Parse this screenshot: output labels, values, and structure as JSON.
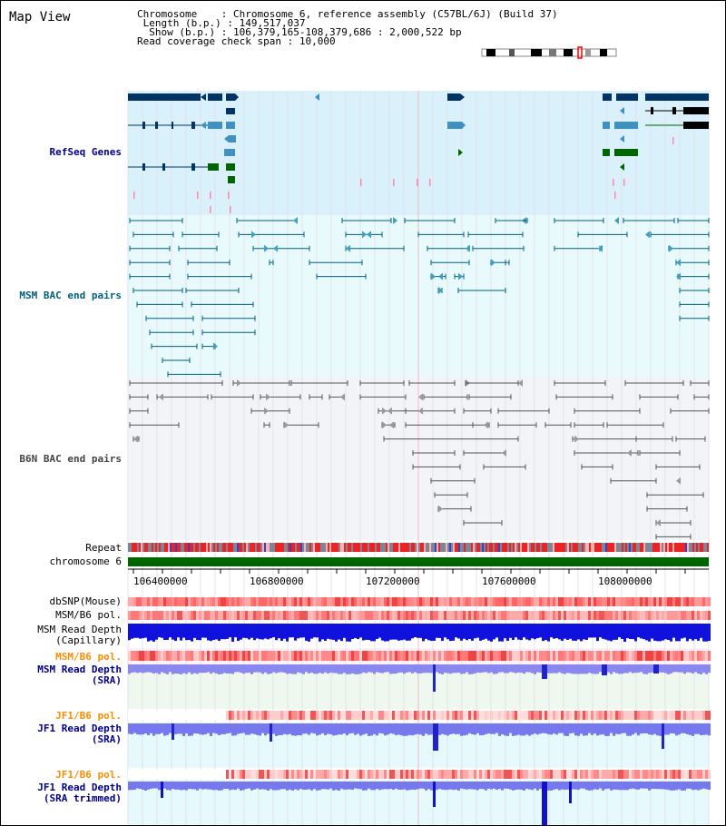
{
  "map_title": "Map View",
  "info": {
    "chromosome_label": "Chromosome",
    "chromosome_value": "Chromosome 6, reference assembly (C57BL/6J) (Build 37)",
    "length_label": "Length (b.p.)",
    "length_value": "149,517,037",
    "show_label": "Show (b.p.)",
    "show_value": "106,379,165-108,379,686 : 2,000,522 bp",
    "coverage_label": "Read coverage check span",
    "coverage_value": "10,000"
  },
  "tracks": {
    "refseq": "RefSeq Genes",
    "msm_bac": "MSM BAC end pairs",
    "b6n_bac": "B6N BAC end pairs",
    "repeat": "Repeat",
    "chromosome": "chromosome 6",
    "dbsnp": "dbSNP(Mouse)",
    "msm_b6_pol": "MSM/B6 pol.",
    "msm_depth_cap_1": "MSM Read Depth",
    "msm_depth_cap_2": "(Capillary)",
    "msm_b6_pol_2": "MSM/B6 pol.",
    "msm_depth_sra_1": "MSM Read Depth",
    "msm_depth_sra_2": "(SRA)",
    "jf1_b6_pol": "JF1/B6 pol.",
    "jf1_depth_sra_1": "JF1 Read Depth",
    "jf1_depth_sra_2": "(SRA)",
    "jf1_b6_pol_2": "JF1/B6 pol.",
    "jf1_depth_trim_1": "JF1 Read Depth",
    "jf1_depth_trim_2": "(SRA trimmed)"
  },
  "axis_ticks": [
    "106400000",
    "106800000",
    "107200000",
    "107600000",
    "108000000"
  ],
  "colors": {
    "refseq_label": "#00008b",
    "msm_label": "#006080",
    "b6n_label": "#444444",
    "orange_label": "#ff8c00",
    "blue_label": "#00008b",
    "gene_dark": "#003366",
    "gene_light": "#4090c0",
    "gene_green": "#006400",
    "chromosome_bar": "#006400"
  }
}
